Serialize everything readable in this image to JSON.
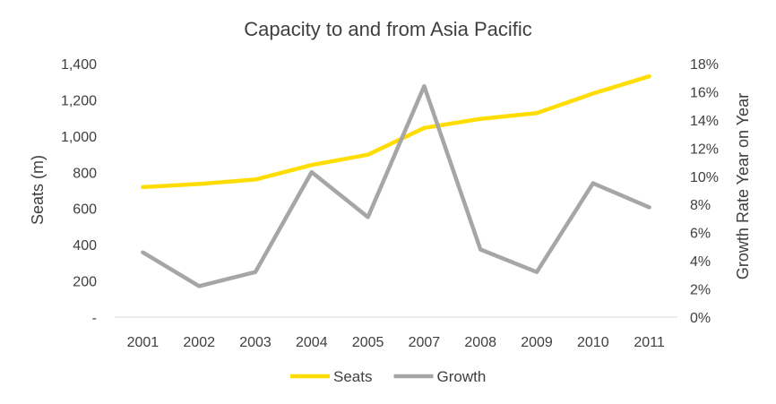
{
  "chart_data": {
    "type": "line",
    "title": "Capacity to and from Asia Pacific",
    "categories": [
      "2001",
      "2002",
      "2003",
      "2004",
      "2005",
      "2007",
      "2008",
      "2009",
      "2010",
      "2011"
    ],
    "xlabel": "",
    "ylabel": "Seats (m)",
    "y2label": "Growth Rate Year on Year",
    "ylim": [
      0,
      1400
    ],
    "y2lim": [
      0,
      18
    ],
    "y_ticks": [
      "-",
      "200",
      "400",
      "600",
      "800",
      "1,000",
      "1,200",
      "1,400"
    ],
    "y2_ticks": [
      "0%",
      "2%",
      "4%",
      "6%",
      "8%",
      "10%",
      "12%",
      "14%",
      "16%",
      "18%"
    ],
    "grid": false,
    "legend_position": "bottom",
    "series": [
      {
        "name": "Seats",
        "axis": "left",
        "color": "#ffdd00",
        "values": [
          718,
          735,
          760,
          840,
          897,
          1045,
          1095,
          1127,
          1235,
          1330
        ]
      },
      {
        "name": "Growth",
        "axis": "right",
        "color": "#a6a6a6",
        "values": [
          4.6,
          2.2,
          3.2,
          10.3,
          7.1,
          16.4,
          4.8,
          3.2,
          9.5,
          7.8
        ]
      }
    ]
  }
}
